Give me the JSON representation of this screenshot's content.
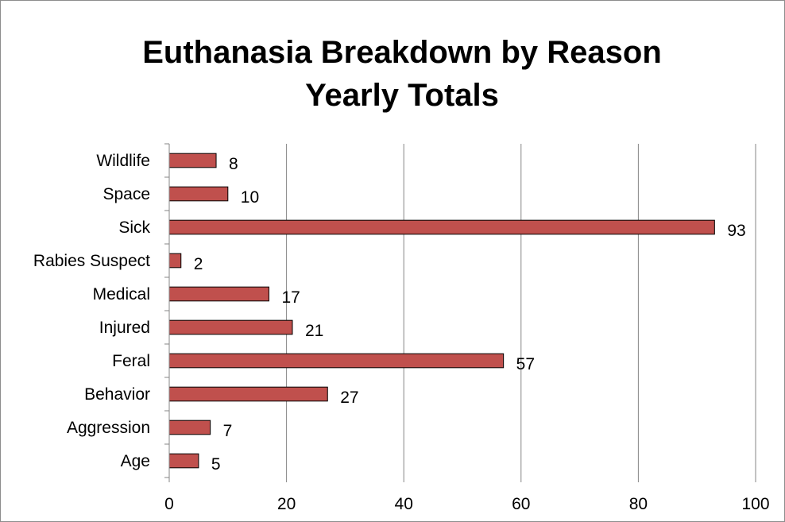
{
  "chart_data": {
    "type": "bar",
    "orientation": "horizontal",
    "title": "Euthanasia Breakdown by Reason",
    "subtitle": "Yearly Totals",
    "xlabel": "",
    "ylabel": "",
    "categories": [
      "Age",
      "Aggression",
      "Behavior",
      "Feral",
      "Injured",
      "Medical",
      "Rabies Suspect",
      "Sick",
      "Space",
      "Wildlife"
    ],
    "values": [
      5,
      7,
      27,
      57,
      21,
      17,
      2,
      93,
      10,
      8
    ],
    "xlim": [
      0,
      100
    ],
    "xticks": [
      "0",
      "20",
      "40",
      "60",
      "80",
      "100"
    ],
    "grid": "vertical",
    "legend": "none",
    "bar_color": "#c0504d",
    "bar_edge_color": "#000000",
    "data_labels": true
  }
}
